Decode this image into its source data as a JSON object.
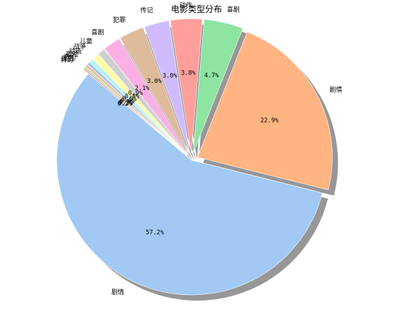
{
  "chart_data": {
    "type": "pie",
    "title": "电影类型分布",
    "start_angle_deg": 140,
    "direction": "counterclockwise",
    "shadow": true,
    "pct_format": "%1.1f%%",
    "slices": [
      {
        "label": "剧情",
        "value": 57.2,
        "pct": "57.2%",
        "color": "#a1c9f4",
        "explode": 0.0
      },
      {
        "label": "剧情",
        "value": 22.9,
        "pct": "22.9%",
        "color": "#ffb482",
        "explode": 0.05
      },
      {
        "label": "喜剧",
        "value": 4.7,
        "pct": "4.7%",
        "color": "#8de5a1",
        "explode": 0.05
      },
      {
        "label": "动作",
        "value": 3.8,
        "pct": "3.8%",
        "color": "#ff9f9b",
        "explode": 0.05
      },
      {
        "label": "传记",
        "value": 3.0,
        "pct": "3.0%",
        "color": "#d0bbff",
        "explode": 0.05
      },
      {
        "label": "犯罪",
        "value": 3.0,
        "pct": "3.0%",
        "color": "#debb9b",
        "explode": 0.05
      },
      {
        "label": "喜剧",
        "value": 2.1,
        "pct": "2.1%",
        "color": "#fab0e4",
        "explode": 0.05
      },
      {
        "label": "儿童",
        "value": 0.9,
        "pct": "0.9%",
        "color": "#cfcfcf",
        "explode": 0.05
      },
      {
        "label": "战争",
        "value": 0.8,
        "pct": "0.8%",
        "color": "#fffea3",
        "explode": 0.05
      },
      {
        "label": "动画",
        "value": 0.5,
        "pct": "0.5%",
        "color": "#b9f2f0",
        "explode": 0.05
      },
      {
        "label": "冒险",
        "value": 0.4,
        "pct": "0.4%",
        "color": "#a1c9f4",
        "explode": 0.05
      },
      {
        "label": "奇幻",
        "value": 0.3,
        "pct": "0.3%",
        "color": "#ffb482",
        "explode": 0.05
      },
      {
        "label": "家庭",
        "value": 0.2,
        "pct": "0.2%",
        "color": "#8de5a1",
        "explode": 0.05
      },
      {
        "label": "科幻",
        "value": 0.2,
        "pct": "0.2%",
        "color": "#ff9f9b",
        "explode": 0.05
      }
    ]
  }
}
